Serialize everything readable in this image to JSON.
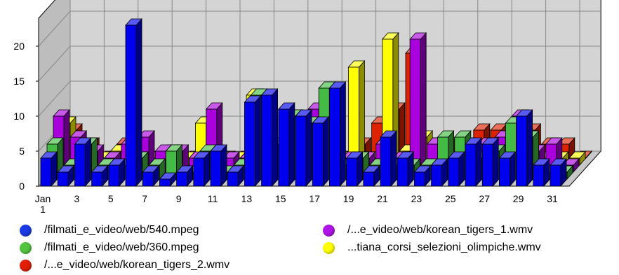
{
  "chart_data": {
    "type": "bar",
    "title": "",
    "xlabel": "",
    "ylabel": "",
    "ylim": [
      0,
      24
    ],
    "yticks": [
      0,
      5,
      10,
      15,
      20
    ],
    "grid": true,
    "legend_position": "bottom",
    "categories": [
      "1",
      "2",
      "3",
      "4",
      "5",
      "6",
      "7",
      "8",
      "9",
      "10",
      "11",
      "12",
      "13",
      "14",
      "15",
      "16",
      "17",
      "18",
      "19",
      "20",
      "21",
      "22",
      "23",
      "24",
      "25",
      "26",
      "27",
      "28",
      "29",
      "30",
      "31"
    ],
    "xtick_labels": [
      "Jan\n1",
      "3",
      "5",
      "7",
      "9",
      "11",
      "13",
      "15",
      "17",
      "19",
      "21",
      "23",
      "25",
      "27",
      "29",
      "31"
    ],
    "xtick_days": [
      1,
      3,
      5,
      7,
      9,
      11,
      13,
      15,
      17,
      19,
      21,
      23,
      25,
      27,
      29,
      31
    ],
    "series": [
      {
        "name": "/filmati_e_video/web/540.mpeg",
        "color": "#0000ee",
        "values": [
          4,
          2,
          6,
          2,
          3,
          23,
          2,
          1,
          2,
          4,
          5,
          2,
          12,
          13,
          11,
          10,
          9,
          14,
          4,
          2,
          7,
          4,
          2,
          3,
          4,
          6,
          6,
          4,
          10,
          3,
          3
        ]
      },
      {
        "name": "/filmati_e_video/web/360.mpeg",
        "color": "#44bb44",
        "values": [
          5,
          2,
          5,
          2,
          2,
          3,
          2,
          4,
          1,
          4,
          1,
          2,
          12,
          5,
          9,
          8,
          13,
          2,
          3,
          2,
          2,
          2,
          2,
          6,
          6,
          3,
          4,
          8,
          6,
          1,
          1
        ]
      },
      {
        "name": "/...e_video/web/korean_tigers_1.wmv",
        "color": "#aa00dd",
        "values": [
          8,
          5,
          3,
          2,
          4,
          5,
          3,
          3,
          2,
          9,
          2,
          2,
          10,
          3,
          2,
          9,
          3,
          2,
          2,
          4,
          2,
          19,
          4,
          2,
          3,
          4,
          5,
          8,
          3,
          4,
          1
        ]
      },
      {
        "name": "...tiana_corsi_selezioni_olimpiche.wmv",
        "color": "#ffff00",
        "values": [
          6,
          2,
          1,
          2,
          2,
          1,
          2,
          1,
          6,
          1,
          1,
          10,
          3,
          2,
          2,
          1,
          1,
          14,
          1,
          18,
          2,
          4,
          2,
          1,
          1,
          3,
          4,
          2,
          1,
          1,
          1
        ]
      },
      {
        "name": "/...e_video/web/korean_tigers_2.wmv",
        "color": "#dd2200",
        "values": [
          4,
          2,
          0,
          2,
          2,
          0,
          0,
          0,
          4,
          0,
          0,
          6,
          2,
          6,
          3,
          2,
          0,
          2,
          5,
          7,
          15,
          2,
          2,
          2,
          4,
          4,
          5,
          4,
          2,
          2,
          0
        ]
      }
    ]
  },
  "legend": {
    "items": [
      {
        "label": "/filmati_e_video/web/540.mpeg",
        "color": "#1a3be6"
      },
      {
        "label": "/...e_video/web/korean_tigers_1.wmv",
        "color": "#b014e8"
      },
      {
        "label": "/filmati_e_video/web/360.mpeg",
        "color": "#55c43f"
      },
      {
        "label": "...tiana_corsi_selezioni_olimpiche.wmv",
        "color": "#ffff00"
      },
      {
        "label": "/...e_video/web/korean_tigers_2.wmv",
        "color": "#e21f06"
      }
    ]
  }
}
